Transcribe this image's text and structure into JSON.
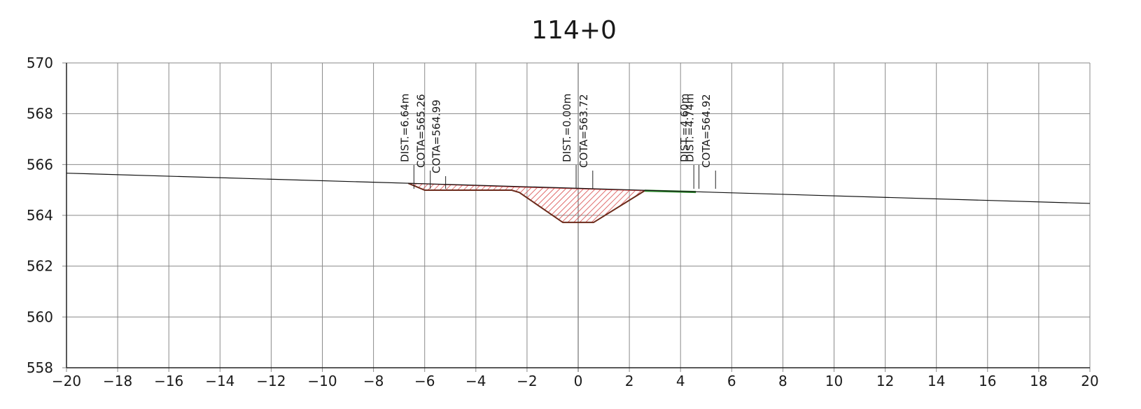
{
  "chart_data": {
    "type": "cross-section",
    "title": "114+0",
    "xlabel": "",
    "ylabel": "",
    "xlim": [
      -20,
      20
    ],
    "ylim": [
      558,
      570
    ],
    "x_ticks": [
      -20,
      -18,
      -16,
      -14,
      -12,
      -10,
      -8,
      -6,
      -4,
      -2,
      0,
      2,
      4,
      6,
      8,
      10,
      12,
      14,
      16,
      18,
      20
    ],
    "y_ticks": [
      558,
      560,
      562,
      564,
      566,
      568,
      570
    ],
    "x_tick_labels": [
      "−20",
      "−18",
      "−16",
      "−14",
      "−12",
      "−10",
      "−8",
      "−6",
      "−4",
      "−2",
      "0",
      "2",
      "4",
      "6",
      "8",
      "10",
      "12",
      "14",
      "16",
      "18",
      "20"
    ],
    "y_tick_labels": [
      "558",
      "560",
      "562",
      "564",
      "566",
      "568",
      "570"
    ],
    "grid": true,
    "terrain_line": {
      "x": [
        -20,
        20
      ],
      "y": [
        565.66,
        564.47
      ]
    },
    "cut_section": {
      "color": "#d84a4a",
      "fill": "hatched",
      "top": {
        "x": [
          -6.64,
          -2.6,
          2.6
        ],
        "y": [
          565.26,
          565.12,
          564.97
        ]
      },
      "bottom": {
        "x": [
          -6.64,
          -6.0,
          -2.6,
          -2.3,
          -0.6,
          0.6,
          2.6
        ],
        "y": [
          565.26,
          564.99,
          564.99,
          564.9,
          563.72,
          563.72,
          564.97
        ]
      }
    },
    "fill_section": {
      "color": "#2e8b2e",
      "top": {
        "x": [
          2.6,
          4.6
        ],
        "y": [
          564.97,
          564.92
        ]
      },
      "bottom": {
        "x": [
          2.6,
          4.6
        ],
        "y": [
          564.97,
          564.92
        ]
      }
    },
    "annotations": [
      {
        "x": -6.64,
        "label_x": -6.64,
        "text": "DIST.=6.64m",
        "row": 0
      },
      {
        "x": -6.64,
        "label_x": -6.0,
        "text": "COTA=565.26",
        "row": 1
      },
      {
        "x": -6.0,
        "label_x": -5.4,
        "text": "COTA=564.99",
        "row": 2
      },
      {
        "x": 0.0,
        "label_x": -0.3,
        "text": "DIST.=0.00m",
        "row": 0
      },
      {
        "x": 0.0,
        "label_x": 0.35,
        "text": "COTA=563.72",
        "row": 1
      },
      {
        "x": 4.6,
        "label_x": 4.3,
        "text": "DIST.=4.60m",
        "row": 0
      },
      {
        "x": 4.6,
        "label_x": 4.5,
        "text": "DIST.=4.74m",
        "row": 0
      },
      {
        "x": 4.74,
        "label_x": 5.15,
        "text": "COTA=564.92",
        "row": 1
      }
    ]
  }
}
